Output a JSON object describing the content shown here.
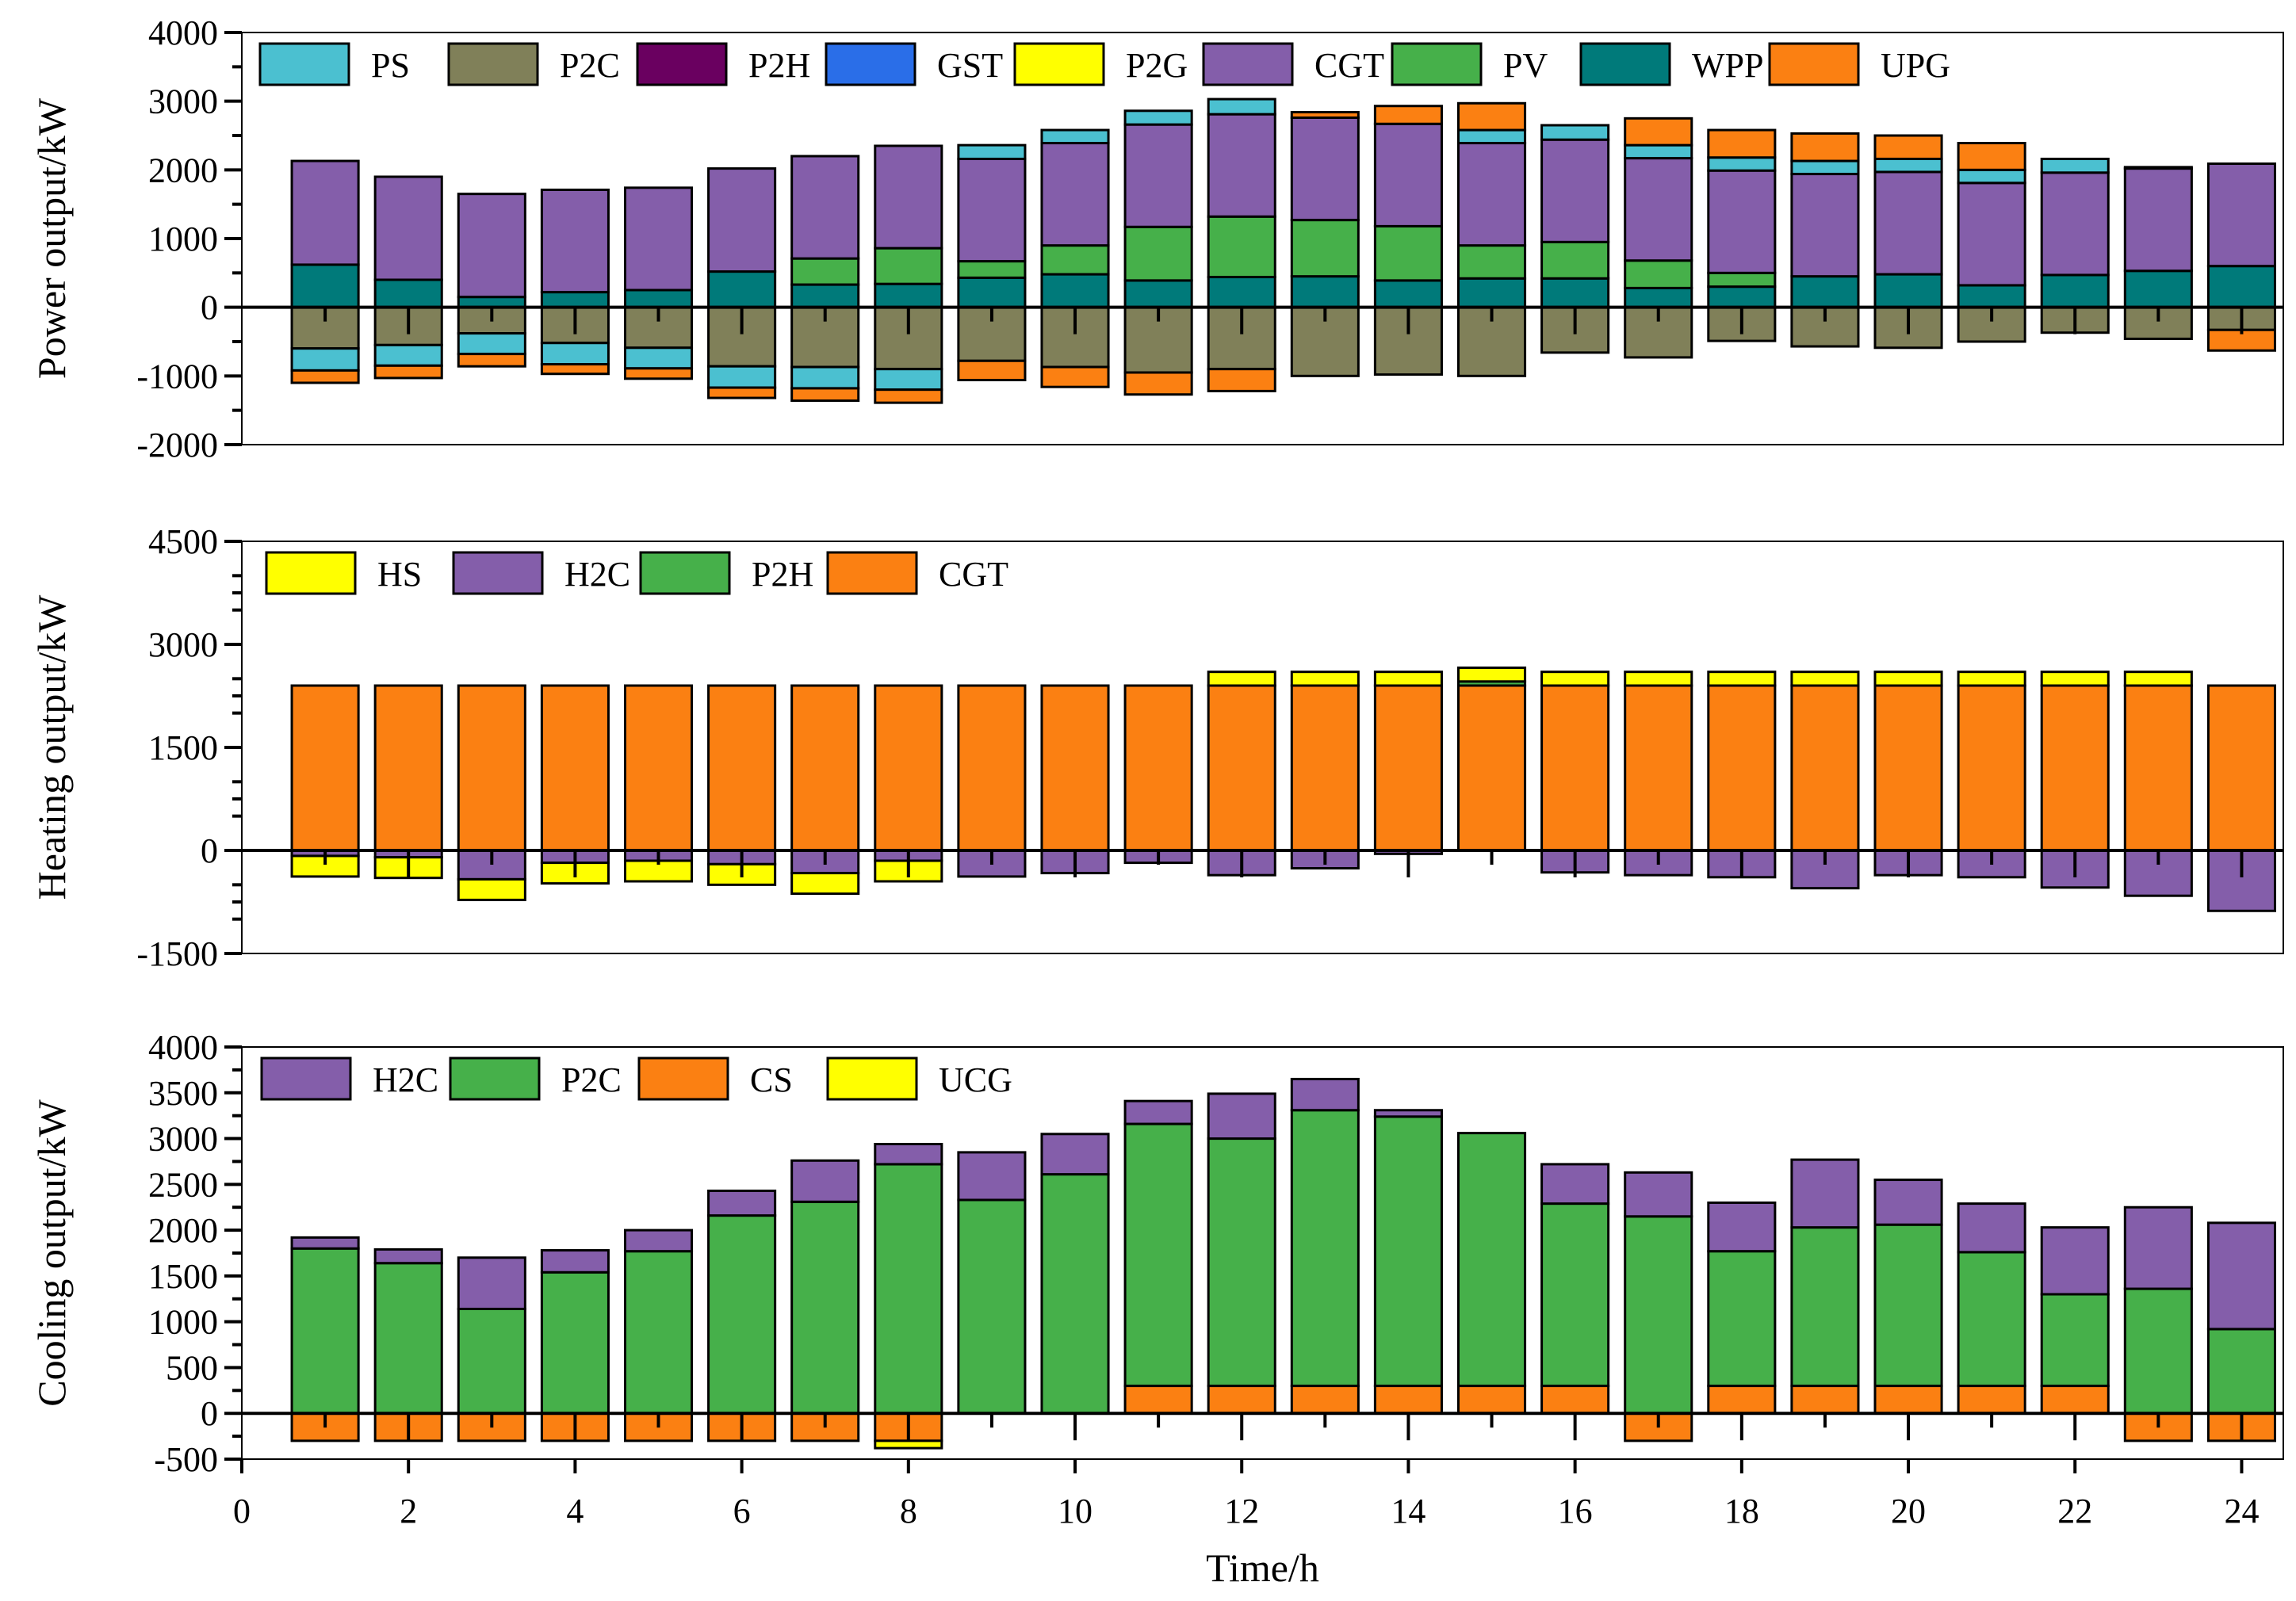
{
  "chart_data": [
    {
      "type": "bar",
      "stacked": true,
      "title": "",
      "ylabel": "Power output/kW",
      "ylim": [
        -2000,
        4000
      ],
      "yticks": [
        -2000,
        -1000,
        0,
        1000,
        2000,
        3000,
        4000
      ],
      "x": [
        1,
        2,
        3,
        4,
        5,
        6,
        7,
        8,
        9,
        10,
        11,
        12,
        13,
        14,
        15,
        16,
        17,
        18,
        19,
        20,
        21,
        22,
        23,
        24
      ],
      "legend": [
        "PS",
        "P2C",
        "P2H",
        "GST",
        "P2G",
        "CGT",
        "PV",
        "WPP",
        "UPG"
      ],
      "colors": {
        "PS": "#4bc0d0",
        "P2C": "#808059",
        "P2H": "#6a0060",
        "GST": "#2a6ee8",
        "P2G": "#ffff00",
        "CGT": "#845eaa",
        "PV": "#46b04a",
        "WPP": "#007a7a",
        "UPG": "#fb8012"
      },
      "series": [
        {
          "name": "WPP",
          "values": [
            620,
            400,
            150,
            220,
            250,
            520,
            330,
            340,
            430,
            480,
            390,
            440,
            450,
            390,
            420,
            420,
            280,
            300,
            450,
            480,
            320,
            470,
            530,
            600
          ]
        },
        {
          "name": "PV",
          "values": [
            0,
            0,
            0,
            0,
            0,
            0,
            380,
            520,
            240,
            420,
            780,
            880,
            820,
            790,
            480,
            530,
            400,
            200,
            0,
            0,
            0,
            0,
            0,
            0
          ]
        },
        {
          "name": "CGT",
          "values": [
            1510,
            1500,
            1500,
            1490,
            1490,
            1500,
            1490,
            1490,
            1490,
            1490,
            1490,
            1490,
            1490,
            1490,
            1490,
            1490,
            1490,
            1490,
            1490,
            1490,
            1490,
            1490,
            1490,
            1490
          ]
        },
        {
          "name": "PS",
          "values": [
            0,
            0,
            0,
            0,
            0,
            0,
            0,
            0,
            200,
            190,
            200,
            220,
            0,
            0,
            190,
            210,
            190,
            190,
            190,
            190,
            190,
            200,
            0,
            0
          ]
        },
        {
          "name": "UPG",
          "values": [
            0,
            0,
            0,
            0,
            0,
            0,
            0,
            0,
            0,
            0,
            0,
            0,
            80,
            260,
            390,
            0,
            390,
            400,
            400,
            340,
            390,
            0,
            20,
            0
          ]
        },
        {
          "name": "P2G",
          "values": [
            0,
            0,
            0,
            0,
            0,
            0,
            0,
            0,
            0,
            0,
            0,
            0,
            0,
            0,
            0,
            0,
            0,
            0,
            0,
            0,
            0,
            0,
            0,
            0
          ]
        },
        {
          "name": "GST",
          "values": [
            0,
            0,
            0,
            0,
            0,
            0,
            0,
            0,
            0,
            0,
            0,
            0,
            0,
            0,
            0,
            0,
            0,
            0,
            0,
            0,
            0,
            0,
            0,
            0
          ]
        },
        {
          "name": "P2H",
          "values": [
            0,
            0,
            0,
            0,
            0,
            0,
            0,
            0,
            0,
            0,
            0,
            0,
            0,
            0,
            0,
            0,
            0,
            0,
            0,
            0,
            0,
            0,
            0,
            0
          ]
        },
        {
          "name": "P2C",
          "values": [
            -600,
            -550,
            -380,
            -520,
            -590,
            -860,
            -870,
            -900,
            -780,
            -870,
            -950,
            -900,
            -1000,
            -980,
            -1000,
            -660,
            -730,
            -490,
            -570,
            -590,
            -500,
            -370,
            -460,
            -330
          ]
        },
        {
          "name": "PS",
          "values": [
            -320,
            -300,
            -300,
            -310,
            -300,
            -310,
            -310,
            -300,
            0,
            0,
            0,
            0,
            0,
            0,
            0,
            0,
            0,
            0,
            0,
            0,
            0,
            0,
            0,
            0
          ]
        },
        {
          "name": "UPG",
          "values": [
            -180,
            -180,
            -180,
            -140,
            -150,
            -150,
            -180,
            -190,
            -280,
            -290,
            -320,
            -320,
            0,
            0,
            0,
            0,
            0,
            0,
            0,
            0,
            0,
            0,
            0,
            -300
          ]
        }
      ]
    },
    {
      "type": "bar",
      "stacked": true,
      "title": "",
      "ylabel": "Heating output/kW",
      "ylim": [
        -1500,
        4500
      ],
      "yticks": [
        -1500,
        0,
        1500,
        3000,
        4500
      ],
      "x": [
        1,
        2,
        3,
        4,
        5,
        6,
        7,
        8,
        9,
        10,
        11,
        12,
        13,
        14,
        15,
        16,
        17,
        18,
        19,
        20,
        21,
        22,
        23,
        24
      ],
      "legend": [
        "HS",
        "H2C",
        "P2H",
        "CGT"
      ],
      "colors": {
        "HS": "#ffff00",
        "H2C": "#845eaa",
        "P2H": "#46b04a",
        "CGT": "#fb8012"
      },
      "series": [
        {
          "name": "CGT",
          "values": [
            2400,
            2400,
            2400,
            2400,
            2400,
            2400,
            2400,
            2400,
            2400,
            2400,
            2400,
            2400,
            2400,
            2400,
            2400,
            2400,
            2400,
            2400,
            2400,
            2400,
            2400,
            2400,
            2400,
            2400
          ]
        },
        {
          "name": "P2H",
          "values": [
            0,
            0,
            0,
            0,
            0,
            0,
            0,
            0,
            0,
            0,
            0,
            0,
            0,
            0,
            60,
            0,
            0,
            0,
            0,
            0,
            0,
            0,
            0,
            0
          ]
        },
        {
          "name": "HS",
          "values": [
            0,
            0,
            0,
            0,
            0,
            0,
            0,
            0,
            0,
            0,
            0,
            200,
            200,
            200,
            200,
            200,
            200,
            200,
            200,
            200,
            200,
            200,
            200,
            0
          ]
        },
        {
          "name": "H2C",
          "values": [
            -80,
            -100,
            -420,
            -180,
            -150,
            -200,
            -330,
            -150,
            -380,
            -330,
            -180,
            -360,
            -260,
            -50,
            0,
            -320,
            -360,
            -390,
            -550,
            -360,
            -390,
            -540,
            -660,
            -880
          ]
        },
        {
          "name": "HS",
          "values": [
            -300,
            -300,
            -300,
            -300,
            -300,
            -300,
            -300,
            -300,
            0,
            0,
            0,
            0,
            0,
            0,
            0,
            0,
            0,
            0,
            0,
            0,
            0,
            0,
            0,
            0
          ]
        }
      ]
    },
    {
      "type": "bar",
      "stacked": true,
      "title": "",
      "ylabel": "Cooling output/kW",
      "xlabel": "Time/h",
      "ylim": [
        -500,
        4000
      ],
      "yticks": [
        -500,
        0,
        500,
        1000,
        1500,
        2000,
        2500,
        3000,
        3500,
        4000
      ],
      "xlim": [
        0,
        24.5
      ],
      "xticks": [
        0,
        2,
        4,
        6,
        8,
        10,
        12,
        14,
        16,
        18,
        20,
        22,
        24
      ],
      "x": [
        1,
        2,
        3,
        4,
        5,
        6,
        7,
        8,
        9,
        10,
        11,
        12,
        13,
        14,
        15,
        16,
        17,
        18,
        19,
        20,
        21,
        22,
        23,
        24
      ],
      "legend": [
        "H2C",
        "P2C",
        "CS",
        "UCG"
      ],
      "colors": {
        "H2C": "#845eaa",
        "P2C": "#46b04a",
        "CS": "#fb8012",
        "UCG": "#ffff00"
      },
      "series": [
        {
          "name": "CS",
          "values": [
            0,
            0,
            0,
            0,
            0,
            0,
            0,
            0,
            0,
            0,
            300,
            300,
            300,
            300,
            300,
            300,
            0,
            300,
            300,
            300,
            300,
            300,
            0,
            0
          ]
        },
        {
          "name": "P2C",
          "values": [
            1800,
            1640,
            1140,
            1540,
            1770,
            2160,
            2310,
            2720,
            2330,
            2610,
            2860,
            2700,
            3010,
            2940,
            2760,
            1990,
            2150,
            1470,
            1730,
            1760,
            1460,
            1000,
            1360,
            920
          ]
        },
        {
          "name": "H2C",
          "values": [
            120,
            150,
            560,
            240,
            230,
            270,
            450,
            220,
            520,
            440,
            250,
            490,
            340,
            70,
            0,
            430,
            480,
            530,
            740,
            490,
            530,
            730,
            890,
            1160
          ]
        },
        {
          "name": "CS",
          "values": [
            -300,
            -300,
            -300,
            -300,
            -300,
            -300,
            -300,
            -300,
            0,
            0,
            0,
            0,
            0,
            0,
            0,
            0,
            -300,
            0,
            0,
            0,
            0,
            0,
            -300,
            -300
          ]
        },
        {
          "name": "UCG",
          "values": [
            0,
            0,
            0,
            0,
            0,
            0,
            0,
            -80,
            0,
            0,
            0,
            0,
            0,
            0,
            0,
            0,
            0,
            0,
            0,
            0,
            0,
            0,
            0,
            0
          ]
        }
      ]
    }
  ]
}
